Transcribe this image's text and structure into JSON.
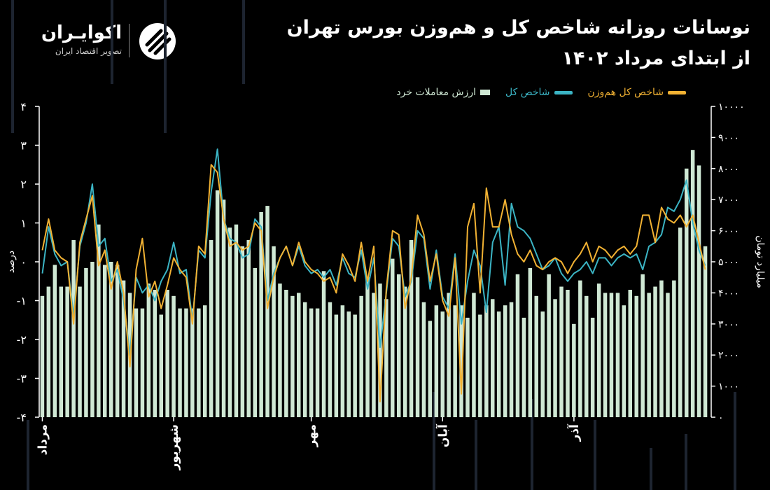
{
  "header": {
    "title_line1": "نوسانات روزانه شاخص کل و هم‌وزن بورس تهران",
    "title_line2": "از ابتدای مرداد ۱۴۰۲"
  },
  "brand": {
    "name": "اکوایـران",
    "subtitle": "تصویر اقتصاد ایران",
    "logo_icon": "ecoiran-logo-icon"
  },
  "colors": {
    "background": "#000000",
    "bars": "#cfe8d4",
    "total_index": "#3bb4c4",
    "equal_index": "#f2b233"
  },
  "chart_data": {
    "type": "bar+line",
    "title": "نوسانات روزانه شاخص کل و هم‌وزن بورس تهران",
    "ylabel": "درصد",
    "y2label": "میلیارد تومان",
    "ylim": [
      -4,
      4
    ],
    "y2lim": [
      0,
      10000
    ],
    "yticks": [
      "۴",
      "۳",
      "۲",
      "۱",
      "۰",
      "-۱",
      "-۲",
      "-۳",
      "-۴"
    ],
    "y2ticks": [
      "۱۰۰۰۰",
      "۹۰۰۰",
      "۸۰۰۰",
      "۷۰۰۰",
      "۶۰۰۰",
      "۵۰۰۰",
      "۴۰۰۰",
      "۳۰۰۰",
      "۲۰۰۰",
      "۱۰۰۰",
      "۰"
    ],
    "month_labels": [
      {
        "label": "مرداد",
        "index": 0
      },
      {
        "label": "شهریور",
        "index": 21
      },
      {
        "label": "مهر",
        "index": 43
      },
      {
        "label": "آبان",
        "index": 64
      },
      {
        "label": "آذر",
        "index": 85
      }
    ],
    "legend": [
      "شاخص کل هم‌وزن",
      "شاخص کل",
      "ارزش معاملات خرد"
    ],
    "grid": false,
    "series": [
      {
        "name": "ارزش معاملات خرد",
        "axis": "right",
        "type": "bar",
        "values": [
          3900,
          4200,
          4900,
          4200,
          4200,
          5700,
          4200,
          4800,
          5000,
          6200,
          4900,
          5000,
          4900,
          4400,
          4000,
          3500,
          3500,
          4300,
          4100,
          3300,
          4100,
          3900,
          3500,
          3500,
          3500,
          3500,
          3600,
          5700,
          7300,
          7000,
          6100,
          6200,
          5500,
          5700,
          4800,
          6600,
          6800,
          5500,
          4300,
          4100,
          3900,
          4000,
          3700,
          3500,
          3500,
          4700,
          3700,
          3300,
          3600,
          3400,
          3300,
          3900,
          4500,
          4000,
          4300,
          3800,
          5100,
          4600,
          4200,
          5700,
          4500,
          3700,
          3100,
          3600,
          3400,
          4000,
          3600,
          3600,
          3200,
          4000,
          3300,
          3600,
          3800,
          3400,
          3600,
          3700,
          4600,
          3200,
          4800,
          3900,
          3400,
          4600,
          3800,
          4200,
          4100,
          3000,
          4400,
          3900,
          3200,
          4300,
          4000,
          4000,
          4000,
          3600,
          4100,
          3900,
          4600,
          4000,
          4200,
          4400,
          4000,
          4400,
          6100,
          8000,
          8600,
          8100,
          5500
        ]
      },
      {
        "name": "شاخص کل",
        "axis": "left",
        "type": "line",
        "values": [
          -0.3,
          0.9,
          0.2,
          -0.1,
          0.0,
          -1.4,
          0.4,
          1.0,
          2.0,
          0.4,
          0.6,
          -0.5,
          -0.2,
          -1.0,
          -2.4,
          -0.4,
          -0.8,
          -0.6,
          -1.0,
          -0.5,
          -0.2,
          0.5,
          -0.3,
          -0.2,
          -1.5,
          0.3,
          0.1,
          1.8,
          2.9,
          1.1,
          0.6,
          0.5,
          0.1,
          0.2,
          1.1,
          0.9,
          -1.0,
          -0.3,
          0.1,
          0.4,
          -0.1,
          0.4,
          -0.1,
          -0.3,
          -0.2,
          -0.4,
          -0.2,
          -0.6,
          0.1,
          -0.3,
          -0.4,
          0.3,
          -0.7,
          0.1,
          -2.2,
          -0.8,
          0.6,
          0.4,
          -0.9,
          -0.5,
          0.8,
          0.6,
          -0.7,
          0.3,
          -0.9,
          -1.2,
          0.2,
          -1.6,
          -0.5,
          0.3,
          -0.1,
          -1.3,
          0.5,
          0.9,
          -0.6,
          1.5,
          0.9,
          0.8,
          0.6,
          0.2,
          -0.2,
          -0.1,
          0.1,
          -0.3,
          -0.5,
          -0.3,
          -0.2,
          0.0,
          -0.3,
          0.1,
          0.1,
          -0.1,
          0.1,
          0.2,
          0.1,
          0.2,
          -0.2,
          0.4,
          0.5,
          0.7,
          1.4,
          1.3,
          1.6,
          2.1,
          1.0,
          0.3,
          -0.1
        ]
      },
      {
        "name": "شاخص کل هم‌وزن",
        "axis": "left",
        "type": "line",
        "values": [
          0.3,
          1.1,
          0.3,
          0.1,
          0.0,
          -1.6,
          0.5,
          1.1,
          1.7,
          -0.1,
          0.3,
          -0.7,
          0.0,
          -0.8,
          -2.7,
          -0.2,
          0.6,
          -0.9,
          -0.5,
          -1.2,
          -0.6,
          0.1,
          -0.2,
          -0.4,
          -1.6,
          0.4,
          0.2,
          2.5,
          2.3,
          1.1,
          0.4,
          0.5,
          0.3,
          0.4,
          1.0,
          0.8,
          -1.2,
          -0.4,
          0.1,
          0.4,
          -0.1,
          0.5,
          0.0,
          -0.2,
          -0.3,
          -0.5,
          -0.4,
          -0.8,
          0.2,
          -0.1,
          -0.5,
          0.5,
          -0.5,
          0.4,
          -3.6,
          -0.7,
          0.8,
          0.7,
          -1.2,
          -0.4,
          1.2,
          0.7,
          -0.5,
          0.2,
          -1.0,
          -1.4,
          0.1,
          -3.4,
          0.9,
          1.5,
          -0.8,
          1.9,
          0.9,
          0.9,
          1.6,
          0.7,
          0.2,
          0.0,
          0.3,
          -0.1,
          -0.2,
          0.0,
          0.1,
          0.0,
          -0.3,
          0.0,
          0.2,
          0.5,
          0.0,
          0.4,
          0.3,
          0.1,
          0.3,
          0.4,
          0.2,
          0.4,
          1.2,
          1.2,
          0.5,
          1.4,
          1.1,
          1.0,
          1.2,
          0.9,
          1.2,
          0.5,
          -0.2
        ]
      }
    ]
  }
}
